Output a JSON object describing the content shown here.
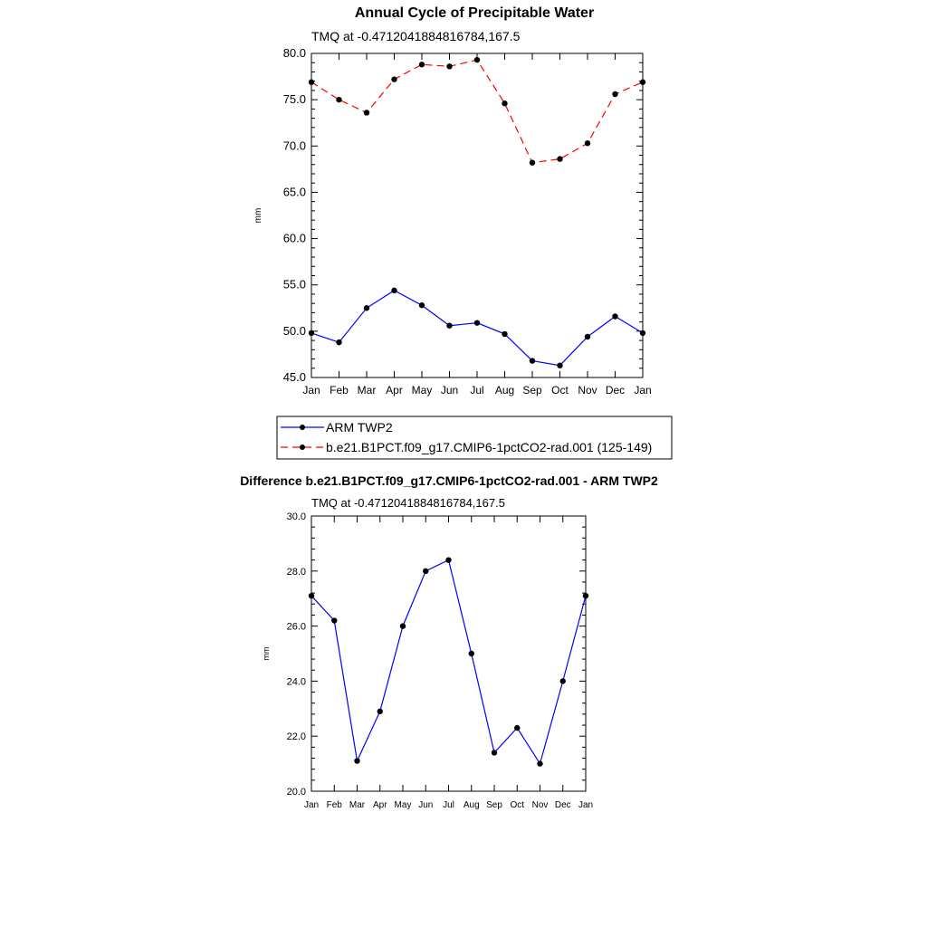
{
  "chart_data": [
    {
      "type": "line",
      "title": "Annual Cycle of Precipitable Water",
      "subtitle": "TMQ at -0.4712041884816784,167.5",
      "xlabel": "",
      "ylabel": "mm",
      "categories": [
        "Jan",
        "Feb",
        "Mar",
        "Apr",
        "May",
        "Jun",
        "Jul",
        "Aug",
        "Sep",
        "Oct",
        "Nov",
        "Dec",
        "Jan"
      ],
      "ylim": [
        45.0,
        80.0
      ],
      "yticks": [
        "45.0",
        "50.0",
        "55.0",
        "60.0",
        "65.0",
        "70.0",
        "75.0",
        "80.0"
      ],
      "series": [
        {
          "name": "ARM TWP2",
          "color": "#0000ff",
          "dash": "solid",
          "values": [
            49.8,
            48.8,
            52.5,
            54.4,
            52.8,
            50.6,
            50.9,
            49.7,
            46.8,
            46.3,
            49.4,
            51.6,
            49.8
          ]
        },
        {
          "name": "b.e21.B1PCT.f09_g17.CMIP6-1pctCO2-rad.001 (125-149)",
          "color": "#ff0000",
          "dash": "dashed",
          "values": [
            76.9,
            75.0,
            73.6,
            77.2,
            78.8,
            78.6,
            79.3,
            74.6,
            68.2,
            68.6,
            70.3,
            75.6,
            76.9
          ]
        }
      ]
    },
    {
      "type": "line",
      "title": "Difference b.e21.B1PCT.f09_g17.CMIP6-1pctCO2-rad.001 - ARM TWP2",
      "subtitle": "TMQ at -0.4712041884816784,167.5",
      "xlabel": "",
      "ylabel": "mm",
      "categories": [
        "Jan",
        "Feb",
        "Mar",
        "Apr",
        "May",
        "Jun",
        "Jul",
        "Aug",
        "Sep",
        "Oct",
        "Nov",
        "Dec",
        "Jan"
      ],
      "ylim": [
        20.0,
        30.0
      ],
      "yticks": [
        "20.0",
        "22.0",
        "24.0",
        "26.0",
        "28.0",
        "30.0"
      ],
      "series": [
        {
          "name": "Difference",
          "color": "#0000ff",
          "dash": "solid",
          "values": [
            27.1,
            26.2,
            21.1,
            22.9,
            26.0,
            28.0,
            28.4,
            25.0,
            21.4,
            22.3,
            21.0,
            24.0,
            27.1
          ]
        }
      ]
    }
  ]
}
